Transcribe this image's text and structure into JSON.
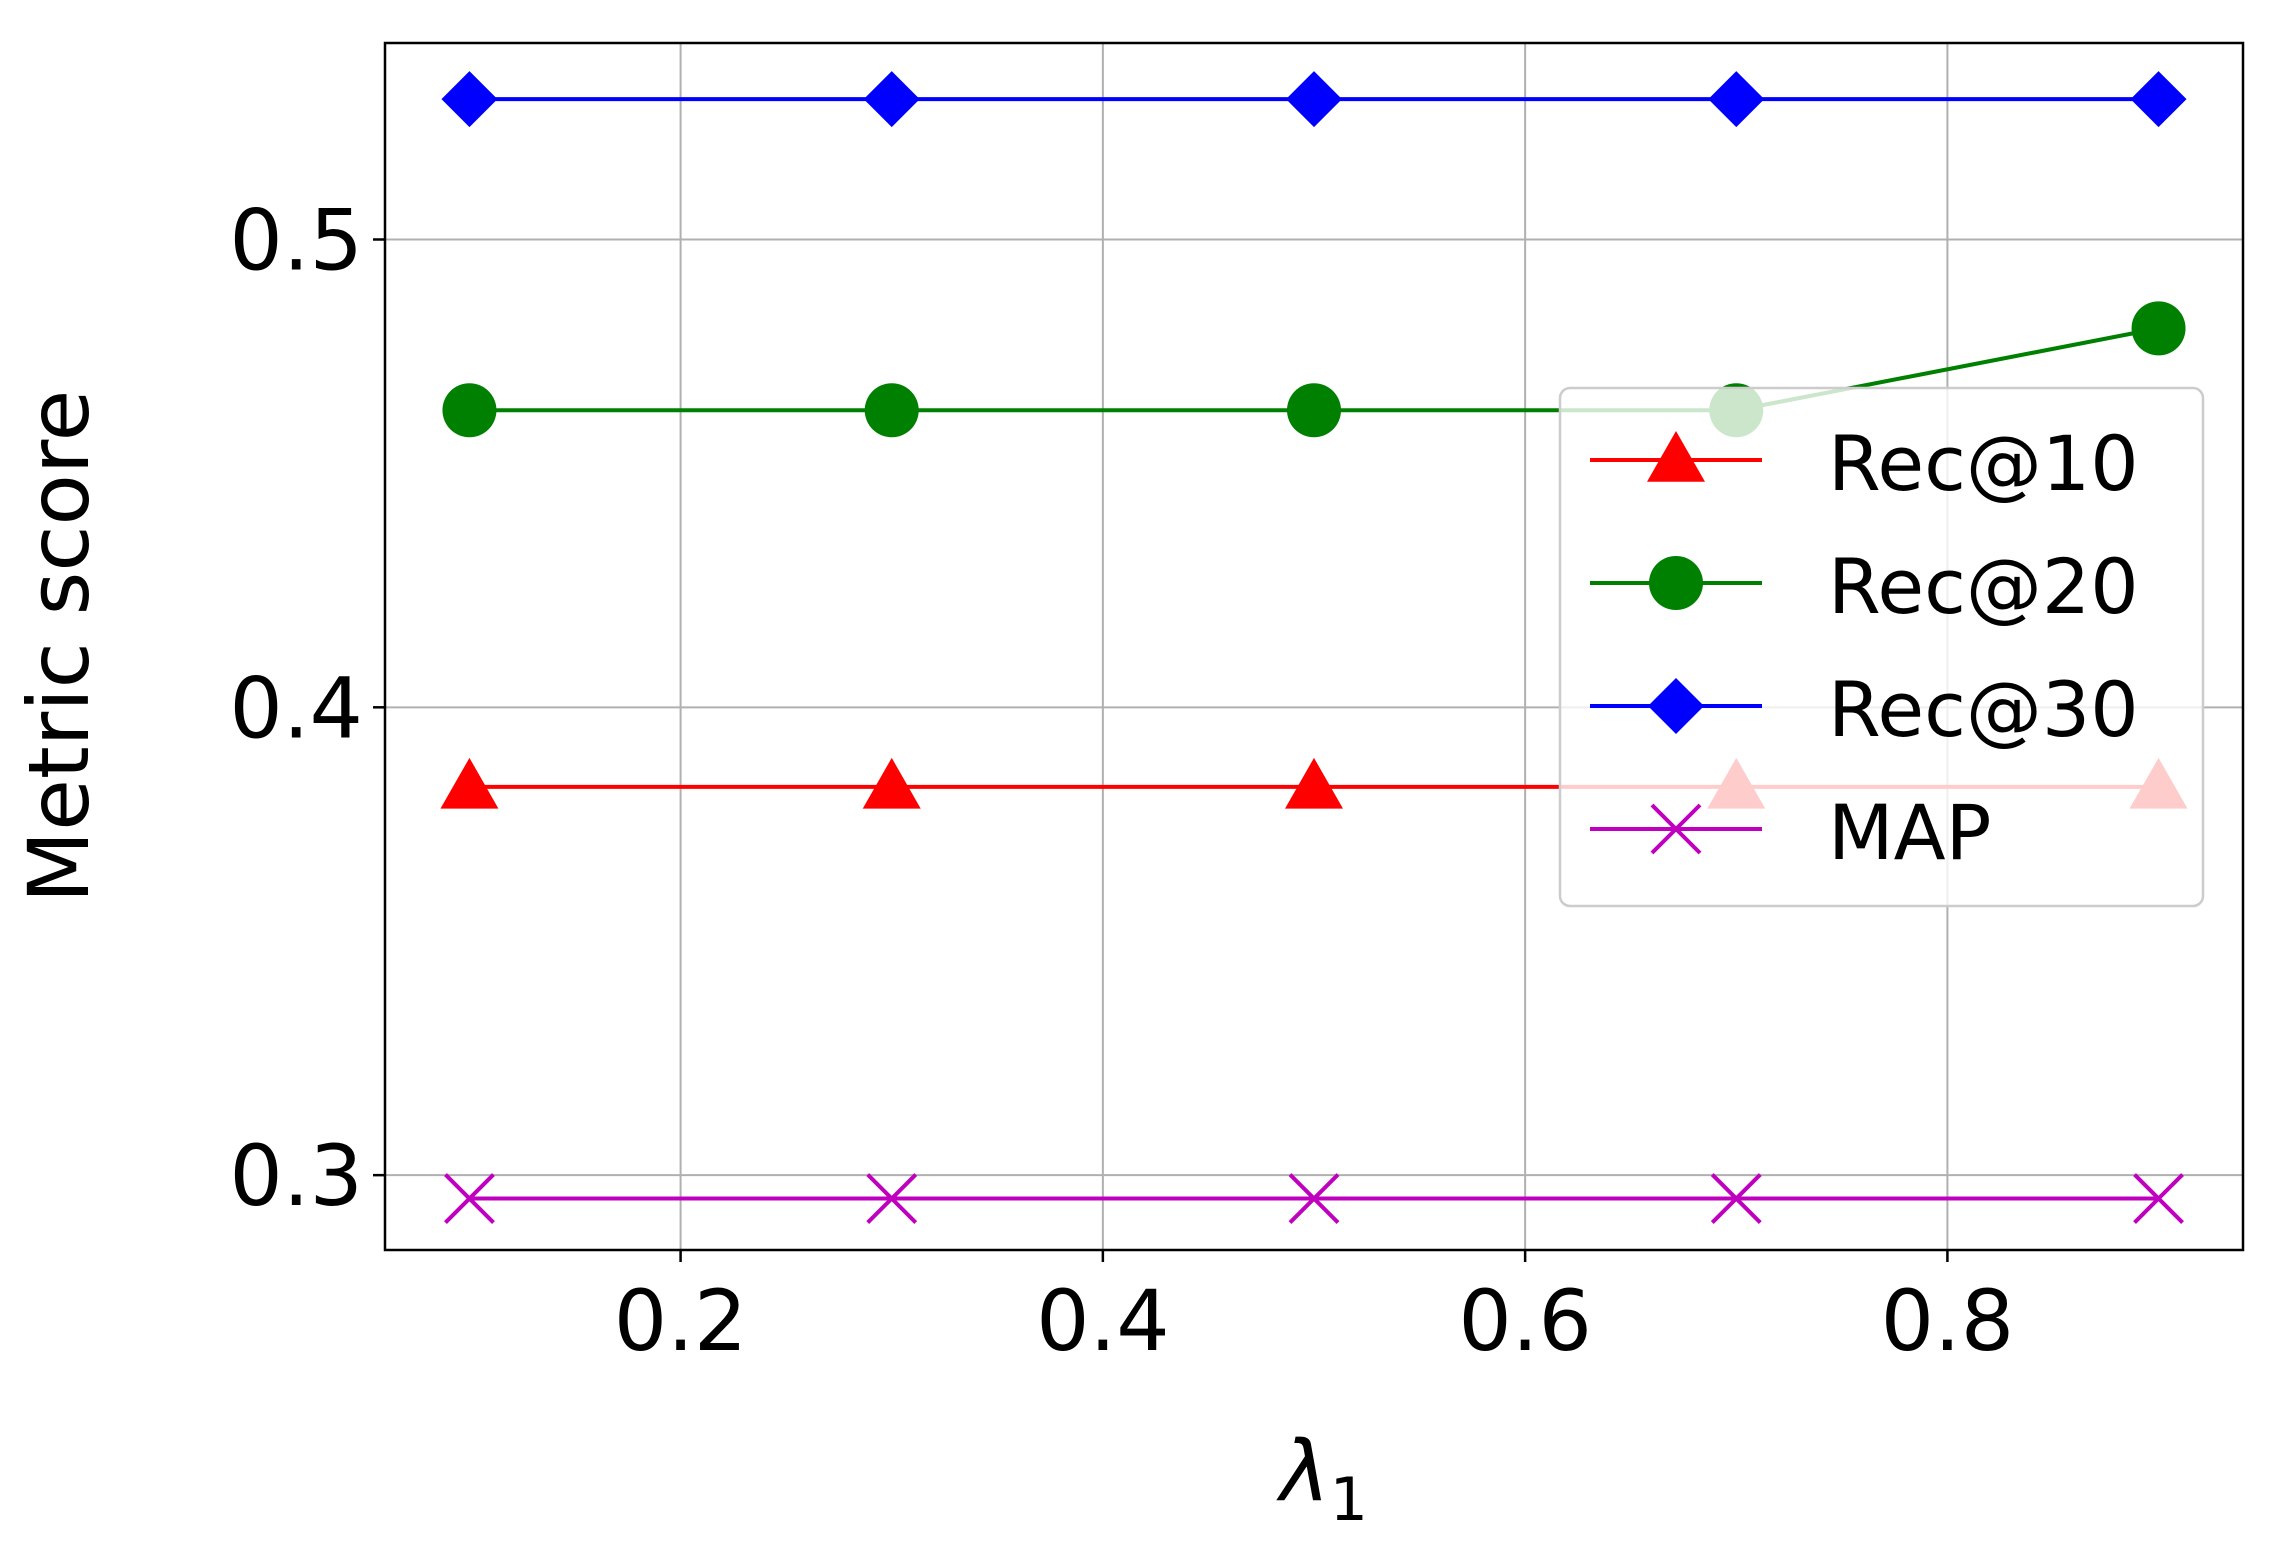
{
  "chart_data": {
    "type": "line",
    "x": [
      0.1,
      0.3,
      0.5,
      0.7,
      0.9
    ],
    "xlabel": "λ",
    "xlabel_subscript": "1",
    "ylabel": "Metric score",
    "xlim": [
      0.06,
      0.94
    ],
    "ylim": [
      0.284,
      0.542
    ],
    "xticks": [
      0.2,
      0.4,
      0.6,
      0.8
    ],
    "xtick_labels": [
      "0.2",
      "0.4",
      "0.6",
      "0.8"
    ],
    "yticks": [
      0.3,
      0.4,
      0.5
    ],
    "ytick_labels": [
      "0.3",
      "0.4",
      "0.5"
    ],
    "grid": true,
    "legend_position": "right",
    "series": [
      {
        "name": "Rec@10",
        "values": [
          0.383,
          0.383,
          0.383,
          0.383,
          0.383
        ],
        "color": "#ff0000",
        "marker": "triangle"
      },
      {
        "name": "Rec@20",
        "values": [
          0.4635,
          0.4635,
          0.4635,
          0.4635,
          0.481
        ],
        "color": "#008000",
        "marker": "circle"
      },
      {
        "name": "Rec@30",
        "values": [
          0.53,
          0.53,
          0.53,
          0.53,
          0.53
        ],
        "color": "#0000ff",
        "marker": "diamond"
      },
      {
        "name": "MAP",
        "values": [
          0.295,
          0.295,
          0.295,
          0.295,
          0.295
        ],
        "color": "#bf00bf",
        "marker": "x"
      }
    ]
  }
}
